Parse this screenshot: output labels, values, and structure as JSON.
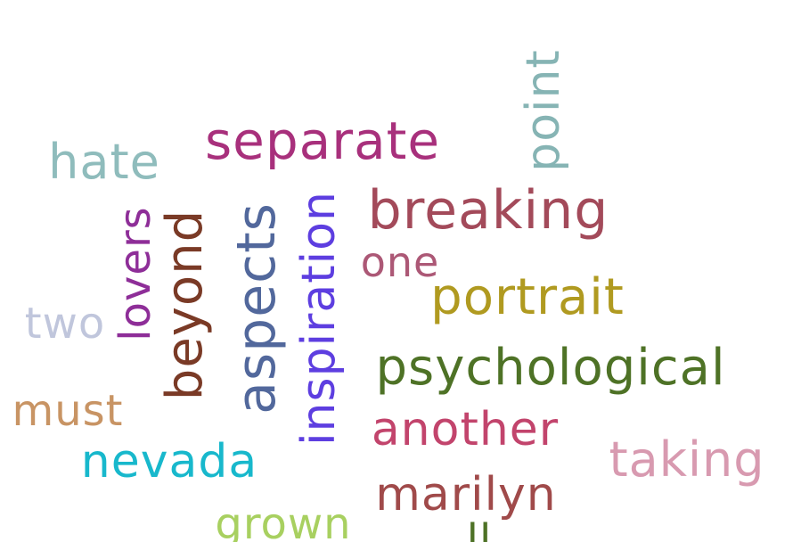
{
  "words": [
    {
      "key": "separate",
      "text": "separate",
      "color": "#a8307c"
    },
    {
      "key": "hate",
      "text": "hate",
      "color": "#8fbcbc"
    },
    {
      "key": "point",
      "text": "point",
      "color": "#86b4b4"
    },
    {
      "key": "breaking",
      "text": "breaking",
      "color": "#a34a5a"
    },
    {
      "key": "lovers",
      "text": "lovers",
      "color": "#8e2e98"
    },
    {
      "key": "beyond",
      "text": "beyond",
      "color": "#7a3a26"
    },
    {
      "key": "aspects",
      "text": "aspects",
      "color": "#52689c"
    },
    {
      "key": "inspiration",
      "text": "inspiration",
      "color": "#5d3ee0"
    },
    {
      "key": "one",
      "text": "one",
      "color": "#ac5876"
    },
    {
      "key": "portrait",
      "text": "portrait",
      "color": "#b09a20"
    },
    {
      "key": "two",
      "text": "two",
      "color": "#c0c6dc"
    },
    {
      "key": "psychological",
      "text": "psychological",
      "color": "#4e7226"
    },
    {
      "key": "must",
      "text": "must",
      "color": "#c89464"
    },
    {
      "key": "another",
      "text": "another",
      "color": "#c2446c"
    },
    {
      "key": "taking",
      "text": "taking",
      "color": "#d89ab0"
    },
    {
      "key": "nevada",
      "text": "nevada",
      "color": "#18b8cc"
    },
    {
      "key": "marilyn",
      "text": "marilyn",
      "color": "#a04a4a"
    },
    {
      "key": "grown",
      "text": "grown",
      "color": "#a8d060"
    },
    {
      "key": "partial",
      "text": "ll",
      "color": "#4e7226"
    }
  ]
}
